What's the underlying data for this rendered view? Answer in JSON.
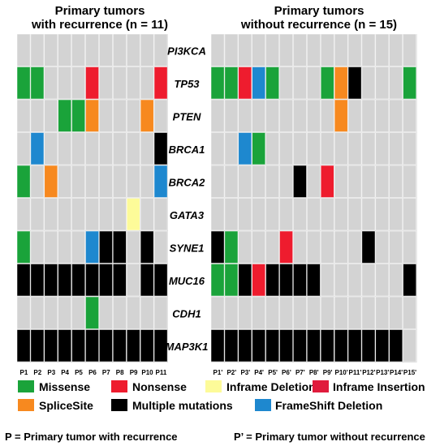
{
  "panels": [
    {
      "title_line1": "Primary tumors",
      "title_line2": "with recurrence (n = 11)",
      "patients": [
        "P1",
        "P2",
        "P3",
        "P4",
        "P5",
        "P6",
        "P7",
        "P8",
        "P9",
        "P10",
        "P11"
      ]
    },
    {
      "title_line1": "Primary tumors",
      "title_line2": "without recurrence (n = 15)",
      "patients": [
        "P1'",
        "P2'",
        "P3'",
        "P4'",
        "P5'",
        "P6'",
        "P7'",
        "P8'",
        "P9'",
        "P10'",
        "P11'",
        "P12'",
        "P13'",
        "P14'",
        "P15'"
      ]
    }
  ],
  "genes": [
    "PI3KCA",
    "TP53",
    "PTEN",
    "BRCA1",
    "BRCA2",
    "GATA3",
    "SYNE1",
    "MUC16",
    "CDH1",
    "MAP3K1"
  ],
  "colors": {
    "missense": "#1aa33a",
    "nonsense": "#ee1c2e",
    "inframe_deletion": "#fdfb99",
    "inframe_insertion": "#e01b3c",
    "splicesite": "#f7891f",
    "multiple": "#000000",
    "frameshift_deletion": "#1e88cf",
    "none": "#d3d3d3"
  },
  "legend": [
    {
      "key": "missense",
      "label": "Missense"
    },
    {
      "key": "nonsense",
      "label": "Nonsense"
    },
    {
      "key": "inframe_deletion",
      "label": "Inframe Deletion"
    },
    {
      "key": "inframe_insertion",
      "label": "Inframe Insertion"
    },
    {
      "key": "splicesite",
      "label": "SpliceSite"
    },
    {
      "key": "multiple",
      "label": "Multiple mutations"
    },
    {
      "key": "frameshift_deletion",
      "label": "FrameShift Deletion"
    }
  ],
  "footnote_left": "P = Primary tumor with recurrence",
  "footnote_right": "P’ = Primary tumor without recurrence",
  "mutations": {
    "left": [
      [
        null,
        null,
        null,
        null,
        null,
        null,
        null,
        null,
        null,
        null,
        null
      ],
      [
        "missense",
        "missense",
        null,
        null,
        null,
        "nonsense",
        null,
        null,
        null,
        null,
        "nonsense"
      ],
      [
        null,
        null,
        null,
        "missense",
        "missense",
        "splicesite",
        null,
        null,
        null,
        "splicesite",
        null
      ],
      [
        null,
        "frameshift_deletion",
        null,
        null,
        null,
        null,
        null,
        null,
        null,
        null,
        "multiple"
      ],
      [
        "missense",
        null,
        "splicesite",
        null,
        null,
        null,
        null,
        null,
        null,
        null,
        "frameshift_deletion"
      ],
      [
        null,
        null,
        null,
        null,
        null,
        null,
        null,
        null,
        "inframe_deletion",
        null,
        null
      ],
      [
        "missense",
        null,
        null,
        null,
        null,
        "frameshift_deletion",
        "multiple",
        "multiple",
        null,
        "multiple",
        null
      ],
      [
        "multiple",
        "multiple",
        "multiple",
        "multiple",
        "multiple",
        "multiple",
        "multiple",
        "multiple",
        null,
        "multiple",
        "multiple"
      ],
      [
        null,
        null,
        null,
        null,
        null,
        "missense",
        null,
        null,
        null,
        null,
        null
      ],
      [
        "multiple",
        "multiple",
        "multiple",
        "multiple",
        "multiple",
        "multiple",
        "multiple",
        "multiple",
        "multiple",
        "multiple",
        "multiple"
      ]
    ],
    "right": [
      [
        null,
        null,
        null,
        null,
        null,
        null,
        null,
        null,
        null,
        null,
        null,
        null,
        null,
        null,
        null
      ],
      [
        "missense",
        "missense",
        "nonsense",
        "frameshift_deletion",
        "missense",
        null,
        null,
        null,
        "missense",
        "splicesite",
        "multiple",
        null,
        null,
        null,
        "missense"
      ],
      [
        null,
        null,
        null,
        null,
        null,
        null,
        null,
        null,
        null,
        "splicesite",
        null,
        null,
        null,
        null,
        null
      ],
      [
        null,
        null,
        "frameshift_deletion",
        "missense",
        null,
        null,
        null,
        null,
        null,
        null,
        null,
        null,
        null,
        null,
        null
      ],
      [
        null,
        null,
        null,
        null,
        null,
        null,
        "multiple",
        null,
        "nonsense",
        null,
        null,
        null,
        null,
        null,
        null
      ],
      [
        null,
        null,
        null,
        null,
        null,
        null,
        null,
        null,
        null,
        null,
        null,
        null,
        null,
        null,
        null
      ],
      [
        "multiple",
        "missense",
        null,
        null,
        null,
        "nonsense",
        null,
        null,
        null,
        null,
        null,
        "multiple",
        null,
        null,
        null
      ],
      [
        "missense",
        "missense",
        "multiple",
        "nonsense",
        "multiple",
        "multiple",
        "multiple",
        "multiple",
        null,
        null,
        null,
        null,
        null,
        null,
        "multiple"
      ],
      [
        null,
        null,
        null,
        null,
        null,
        null,
        null,
        null,
        null,
        null,
        null,
        null,
        null,
        null,
        null
      ],
      [
        "multiple",
        "multiple",
        "multiple",
        "multiple",
        "multiple",
        "multiple",
        "multiple",
        "multiple",
        "multiple",
        "multiple",
        "multiple",
        "multiple",
        "multiple",
        "multiple",
        null
      ]
    ]
  }
}
